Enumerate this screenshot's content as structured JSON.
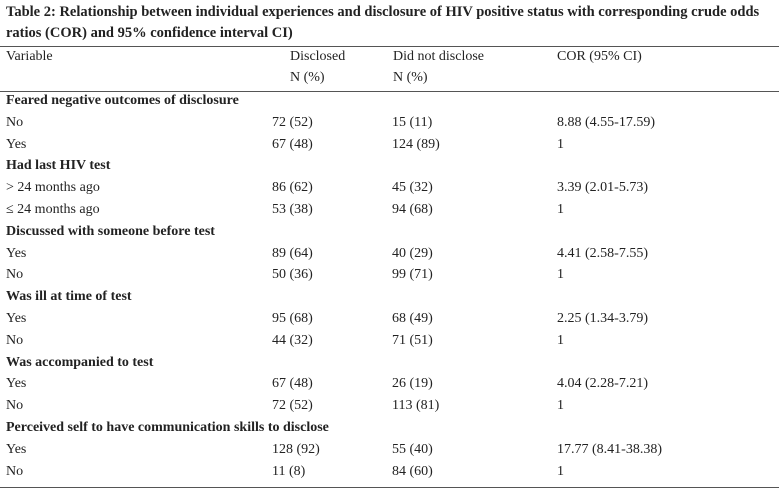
{
  "header": {
    "title": "Table 2: Relationship between individual experiences and disclosure of HIV positive status with corresponding crude odds ratios (COR) and 95% confidence interval CI)"
  },
  "table": {
    "columns": [
      {
        "label": "Variable"
      },
      {
        "label": "Disclosed",
        "sub": "N (%)"
      },
      {
        "label": "Did not disclose",
        "sub": "N (%)"
      },
      {
        "label": "COR (95% CI)"
      }
    ],
    "sections": [
      {
        "title": "Feared negative outcomes of disclosure",
        "rows": [
          [
            "No",
            "72 (52)",
            "15 (11)",
            "8.88 (4.55-17.59)"
          ],
          [
            "Yes",
            "67 (48)",
            "124 (89)",
            "1"
          ]
        ]
      },
      {
        "title": "Had last HIV test",
        "rows": [
          [
            "> 24 months ago",
            "86 (62)",
            "45 (32)",
            "3.39 (2.01-5.73)"
          ],
          [
            "≤ 24 months ago",
            "53 (38)",
            "94 (68)",
            "1"
          ]
        ]
      },
      {
        "title": "Discussed with someone before test",
        "rows": [
          [
            "Yes",
            "89 (64)",
            "40 (29)",
            "4.41 (2.58-7.55)"
          ],
          [
            "No",
            "50 (36)",
            "99 (71)",
            "1"
          ]
        ]
      },
      {
        "title": "Was ill at time of test",
        "rows": [
          [
            "Yes",
            "95 (68)",
            "68 (49)",
            "2.25 (1.34-3.79)"
          ],
          [
            "No",
            "44 (32)",
            "71 (51)",
            "1"
          ]
        ]
      },
      {
        "title": "Was accompanied to test",
        "rows": [
          [
            "Yes",
            "67 (48)",
            "26 (19)",
            "4.04 (2.28-7.21)"
          ],
          [
            "No",
            "72 (52)",
            "113 (81)",
            "1"
          ]
        ]
      },
      {
        "title": "Perceived self to have communication skills to disclose",
        "rows": [
          [
            "Yes",
            "128 (92)",
            "55 (40)",
            "17.77 (8.41-38.38)"
          ],
          [
            "No",
            "11 (8)",
            "84 (60)",
            "1"
          ]
        ]
      }
    ]
  }
}
